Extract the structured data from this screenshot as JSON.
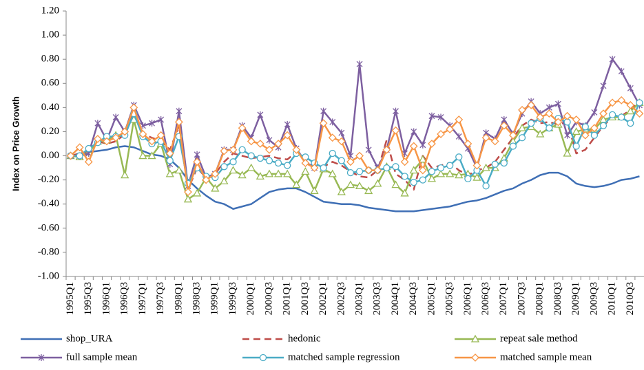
{
  "chart_data": {
    "type": "line",
    "y_label": "Index on Price Growth",
    "categories": [
      "1995Q1",
      null,
      "1995Q3",
      null,
      "1996Q1",
      null,
      "1996Q3",
      null,
      "1997Q1",
      null,
      "1997Q3",
      null,
      "1998Q1",
      null,
      "1998Q3",
      null,
      "1999Q1",
      null,
      "1999Q3",
      null,
      "2000Q1",
      null,
      "2000Q3",
      null,
      "2001Q1",
      null,
      "2001Q3",
      null,
      "2002Q1",
      null,
      "2002Q3",
      null,
      "2003Q1",
      null,
      "2003Q3",
      null,
      "2004Q1",
      null,
      "2004Q3",
      null,
      "2005Q1",
      null,
      "2005Q3",
      null,
      "2006Q1",
      null,
      "2006Q3",
      null,
      "2007Q1",
      null,
      "2007Q3",
      null,
      "2008Q1",
      null,
      "2008Q3",
      null,
      "2009Q1",
      null,
      "2009Q3",
      null,
      "2010Q1",
      null,
      "2010Q3",
      null
    ],
    "ylim": [
      -1.0,
      1.2
    ],
    "yticks": [
      {
        "value": -1.0,
        "label": "-1.00"
      },
      {
        "value": -0.8,
        "label": "-0.80"
      },
      {
        "value": -0.6,
        "label": "-0.60"
      },
      {
        "value": -0.4,
        "label": "-0.40"
      },
      {
        "value": -0.2,
        "label": "-0.20"
      },
      {
        "value": 0,
        "label": "0.00"
      },
      {
        "value": 0.2,
        "label": "0.20"
      },
      {
        "value": 0.4,
        "label": "0.40"
      },
      {
        "value": 0.6,
        "label": "0.60"
      },
      {
        "value": 0.8,
        "label": "0.80"
      },
      {
        "value": 1.0,
        "label": "1.00"
      },
      {
        "value": 1.2,
        "label": "1.20"
      }
    ],
    "grid": false,
    "legend": "bottom",
    "series": [
      {
        "name": "shop_URA",
        "color": "#3f6fb5",
        "marker": "none",
        "dashed": false,
        "values": [
          0,
          0.01,
          0.03,
          0.04,
          0.05,
          0.07,
          0.08,
          0.07,
          0.04,
          0.01,
          0.0,
          -0.03,
          -0.1,
          -0.2,
          -0.27,
          -0.33,
          -0.38,
          -0.4,
          -0.44,
          -0.42,
          -0.4,
          -0.35,
          -0.3,
          -0.28,
          -0.27,
          -0.27,
          -0.3,
          -0.34,
          -0.38,
          -0.39,
          -0.4,
          -0.4,
          -0.41,
          -0.43,
          -0.44,
          -0.45,
          -0.46,
          -0.46,
          -0.46,
          -0.45,
          -0.44,
          -0.43,
          -0.42,
          -0.4,
          -0.38,
          -0.37,
          -0.35,
          -0.32,
          -0.29,
          -0.27,
          -0.23,
          -0.2,
          -0.16,
          -0.14,
          -0.14,
          -0.17,
          -0.23,
          -0.25,
          -0.26,
          -0.25,
          -0.23,
          -0.2,
          -0.19,
          -0.17
        ]
      },
      {
        "name": "hedonic",
        "color": "#be4b48",
        "marker": "none",
        "dashed": true,
        "values": [
          0,
          0.02,
          0.03,
          0.12,
          0.1,
          0.12,
          0.18,
          0.38,
          0.18,
          0.15,
          0.12,
          0.05,
          0.25,
          -0.28,
          -0.1,
          -0.18,
          -0.15,
          -0.05,
          0.02,
          0.0,
          -0.02,
          -0.01,
          0.0,
          -0.02,
          -0.03,
          0.03,
          -0.05,
          -0.08,
          -0.09,
          -0.05,
          -0.08,
          -0.13,
          -0.17,
          -0.18,
          -0.12,
          0.13,
          -0.15,
          -0.2,
          -0.28,
          0.0,
          -0.1,
          -0.08,
          -0.06,
          -0.12,
          -0.16,
          -0.12,
          -0.1,
          -0.05,
          0.05,
          0.15,
          0.25,
          0.3,
          0.27,
          0.28,
          0.26,
          0.28,
          0.02,
          0.05,
          0.15,
          0.25,
          0.32,
          0.33,
          0.38,
          0.45
        ]
      },
      {
        "name": "repeat sale method",
        "color": "#98b954",
        "marker": "triangle",
        "dashed": false,
        "values": [
          0,
          -0.01,
          0.03,
          0.12,
          0.13,
          0.17,
          -0.16,
          0.3,
          0.0,
          0.0,
          0.1,
          -0.15,
          -0.12,
          -0.36,
          -0.31,
          -0.18,
          -0.27,
          -0.21,
          -0.12,
          -0.16,
          -0.1,
          -0.17,
          -0.15,
          -0.15,
          -0.15,
          -0.24,
          -0.13,
          -0.29,
          -0.11,
          -0.15,
          -0.3,
          -0.24,
          -0.25,
          -0.29,
          -0.23,
          -0.09,
          -0.24,
          -0.31,
          -0.12,
          -0.03,
          -0.19,
          -0.15,
          -0.15,
          -0.16,
          -0.15,
          -0.18,
          -0.1,
          -0.1,
          -0.02,
          0.12,
          0.23,
          0.24,
          0.18,
          0.23,
          0.26,
          0.02,
          0.2,
          0.22,
          0.22,
          0.3,
          0.32,
          0.32,
          0.37,
          0.44
        ]
      },
      {
        "name": "full sample mean",
        "color": "#7d5fa0",
        "marker": "star",
        "dashed": false,
        "values": [
          0,
          0.0,
          0.02,
          0.27,
          0.13,
          0.32,
          0.2,
          0.42,
          0.25,
          0.27,
          0.3,
          -0.07,
          0.37,
          -0.25,
          0.01,
          -0.18,
          -0.15,
          0.05,
          0.05,
          0.25,
          0.15,
          0.34,
          0.13,
          0.07,
          0.26,
          0.06,
          -0.05,
          -0.1,
          0.37,
          0.28,
          0.19,
          0.0,
          0.76,
          0.05,
          -0.1,
          0.05,
          0.37,
          0.02,
          0.2,
          0.09,
          0.33,
          0.32,
          0.25,
          0.16,
          0.06,
          -0.1,
          0.19,
          0.14,
          0.3,
          0.18,
          0.35,
          0.45,
          0.35,
          0.4,
          0.43,
          0.17,
          0.28,
          0.25,
          0.36,
          0.58,
          0.8,
          0.7,
          0.56,
          0.42
        ]
      },
      {
        "name": "matched sample regression",
        "color": "#4bacc6",
        "marker": "circle",
        "dashed": false,
        "values": [
          0,
          0.0,
          0.06,
          0.11,
          0.16,
          0.16,
          0.17,
          0.35,
          0.16,
          0.1,
          0.12,
          -0.04,
          0.16,
          -0.23,
          -0.1,
          -0.17,
          -0.18,
          -0.09,
          -0.05,
          0.05,
          0.0,
          -0.02,
          -0.04,
          -0.06,
          -0.08,
          0.02,
          -0.01,
          -0.06,
          -0.1,
          0.02,
          -0.04,
          -0.14,
          -0.13,
          -0.12,
          -0.12,
          -0.1,
          -0.09,
          -0.17,
          -0.22,
          -0.2,
          -0.13,
          -0.1,
          -0.08,
          -0.01,
          -0.19,
          -0.12,
          -0.25,
          -0.07,
          -0.06,
          0.08,
          0.15,
          0.27,
          0.31,
          0.23,
          0.31,
          0.28,
          0.08,
          0.24,
          0.17,
          0.25,
          0.34,
          0.32,
          0.27,
          0.44
        ]
      },
      {
        "name": "matched sample mean",
        "color": "#f79646",
        "marker": "diamond",
        "dashed": false,
        "values": [
          0,
          0.07,
          -0.05,
          0.14,
          0.12,
          0.15,
          0.2,
          0.4,
          0.18,
          0.12,
          0.17,
          0.02,
          0.28,
          -0.3,
          -0.05,
          -0.2,
          -0.15,
          0.04,
          0.05,
          0.23,
          0.12,
          0.1,
          0.05,
          0.1,
          0.17,
          0.05,
          -0.06,
          -0.1,
          0.27,
          0.15,
          0.12,
          -0.05,
          0.0,
          -0.12,
          -0.12,
          0.05,
          0.21,
          -0.05,
          0.08,
          -0.12,
          0.1,
          0.18,
          0.22,
          0.3,
          0.1,
          -0.08,
          0.15,
          0.12,
          0.25,
          0.17,
          0.38,
          0.42,
          0.32,
          0.35,
          0.28,
          0.33,
          0.3,
          0.17,
          0.23,
          0.35,
          0.44,
          0.46,
          0.42,
          0.35
        ]
      }
    ]
  }
}
